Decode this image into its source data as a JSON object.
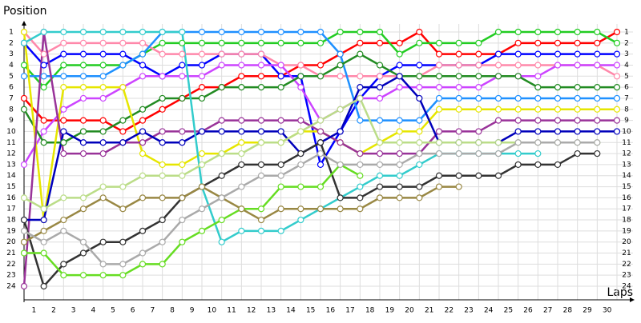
{
  "chart_data": {
    "type": "line",
    "y_label": "Position",
    "x_label": "Laps",
    "x": [
      0,
      1,
      2,
      3,
      4,
      5,
      6,
      7,
      8,
      9,
      10,
      11,
      12,
      13,
      14,
      15,
      16,
      17,
      18,
      19,
      20,
      21,
      22,
      23,
      24,
      25,
      26,
      27,
      28,
      29,
      30
    ],
    "xlim": [
      0,
      30
    ],
    "ylim": [
      1,
      24
    ],
    "y_inverted": true,
    "grid": true,
    "xticks": [
      1,
      2,
      3,
      4,
      5,
      6,
      7,
      8,
      9,
      10,
      11,
      12,
      13,
      14,
      15,
      16,
      17,
      18,
      19,
      20,
      21,
      22,
      23,
      24,
      25,
      26,
      27,
      28,
      29,
      30
    ],
    "yticks": [
      1,
      2,
      3,
      4,
      5,
      6,
      7,
      8,
      9,
      10,
      11,
      12,
      13,
      14,
      15,
      16,
      17,
      18,
      19,
      20,
      21,
      22,
      23,
      24
    ],
    "series": [
      {
        "color": "#ff0000",
        "values": [
          7,
          9,
          9,
          9,
          9,
          10,
          9,
          8,
          7,
          6,
          6,
          5,
          5,
          5,
          4,
          4,
          3,
          2,
          2,
          2,
          1,
          3,
          3,
          3,
          3,
          2,
          2,
          2,
          2,
          2,
          1
        ]
      },
      {
        "color": "#22cc22",
        "values": [
          4,
          6,
          4,
          4,
          4,
          4,
          3,
          2,
          2,
          2,
          2,
          2,
          2,
          2,
          2,
          2,
          1,
          1,
          1,
          3,
          2,
          2,
          2,
          2,
          1,
          1,
          1,
          1,
          1,
          1,
          2
        ]
      },
      {
        "color": "#0000ff",
        "values": [
          2,
          4,
          3,
          3,
          3,
          3,
          4,
          5,
          4,
          4,
          3,
          3,
          3,
          5,
          5,
          13,
          10,
          7,
          5,
          4,
          4,
          4,
          4,
          4,
          3,
          3,
          3,
          3,
          3,
          3,
          3
        ]
      },
      {
        "color": "#ff88aa",
        "values": [
          1,
          3,
          2,
          2,
          2,
          2,
          2,
          3,
          3,
          3,
          3,
          3,
          3,
          4,
          4,
          5,
          5,
          5,
          5,
          5,
          5,
          4,
          4,
          4,
          4,
          4,
          4,
          4,
          4,
          4,
          5
        ]
      },
      {
        "color": "#cc44ff",
        "values": [
          13,
          10,
          8,
          7,
          7,
          6,
          5,
          5,
          5,
          5,
          4,
          4,
          4,
          4,
          6,
          9,
          8,
          7,
          7,
          6,
          6,
          6,
          6,
          6,
          5,
          5,
          5,
          4,
          4,
          4,
          4
        ]
      },
      {
        "color": "#1e90ff",
        "values": [
          5,
          5,
          5,
          5,
          5,
          4,
          3,
          1,
          1,
          1,
          1,
          1,
          1,
          1,
          1,
          1,
          3,
          9,
          9,
          9,
          9,
          7,
          7,
          7,
          7,
          7,
          7,
          7,
          7,
          7,
          7
        ]
      },
      {
        "color": "#228b22",
        "values": [
          8,
          11,
          11,
          10,
          10,
          9,
          8,
          7,
          7,
          7,
          6,
          6,
          6,
          6,
          5,
          5,
          4,
          3,
          4,
          5,
          5,
          5,
          5,
          5,
          5,
          5,
          6,
          6,
          6,
          6,
          6
        ]
      },
      {
        "color": "#e6e600",
        "values": [
          1,
          18,
          6,
          6,
          6,
          6,
          12,
          13,
          13,
          12,
          12,
          11,
          11,
          11,
          10,
          10,
          11,
          12,
          11,
          10,
          10,
          8,
          8,
          8,
          8,
          8,
          8,
          8,
          8,
          8,
          8
        ]
      },
      {
        "color": "#993399",
        "values": [
          24,
          1,
          12,
          12,
          12,
          11,
          11,
          10,
          10,
          10,
          9,
          9,
          9,
          9,
          9,
          10,
          11,
          12,
          12,
          12,
          12,
          10,
          10,
          10,
          9,
          9,
          9,
          9,
          9,
          9,
          9
        ]
      },
      {
        "color": "#0000bb",
        "values": [
          18,
          18,
          10,
          11,
          11,
          11,
          10,
          11,
          11,
          10,
          10,
          10,
          10,
          10,
          12,
          11,
          10,
          6,
          6,
          5,
          7,
          11,
          11,
          11,
          11,
          10,
          10,
          10,
          10,
          10,
          10
        ]
      },
      {
        "color": "#33cccc",
        "values": [
          2,
          1,
          1,
          1,
          1,
          1,
          1,
          1,
          1,
          15,
          20,
          19,
          19,
          19,
          18,
          17,
          16,
          15,
          14,
          14,
          13,
          12,
          12,
          12,
          12,
          12,
          12,
          null,
          null,
          null,
          null
        ]
      },
      {
        "color": "#333333",
        "values": [
          18,
          24,
          22,
          21,
          20,
          20,
          19,
          18,
          16,
          15,
          14,
          13,
          13,
          13,
          12,
          11,
          16,
          16,
          15,
          15,
          15,
          14,
          14,
          14,
          14,
          13,
          13,
          13,
          12,
          12,
          null
        ]
      },
      {
        "color": "#66dd22",
        "values": [
          21,
          21,
          23,
          23,
          23,
          23,
          22,
          22,
          20,
          19,
          18,
          17,
          17,
          15,
          15,
          15,
          13,
          14,
          null,
          null,
          null,
          null,
          null,
          null,
          null,
          null,
          null,
          null,
          null,
          null,
          null
        ]
      },
      {
        "color": "#998844",
        "values": [
          20,
          19,
          18,
          17,
          16,
          17,
          16,
          16,
          16,
          15,
          16,
          17,
          18,
          17,
          17,
          17,
          17,
          17,
          16,
          16,
          16,
          15,
          15,
          null,
          null,
          null,
          null,
          null,
          null,
          null,
          null
        ]
      },
      {
        "color": "#bbdd88",
        "values": [
          16,
          17,
          16,
          16,
          15,
          15,
          14,
          14,
          14,
          13,
          12,
          12,
          11,
          11,
          10,
          9,
          8,
          7,
          11,
          11,
          11,
          11,
          11,
          11,
          11,
          11,
          11,
          11,
          11,
          11,
          null
        ]
      },
      {
        "color": "#aaaaaa",
        "values": [
          19,
          20,
          19,
          20,
          22,
          22,
          21,
          20,
          18,
          17,
          16,
          15,
          14,
          14,
          13,
          12,
          13,
          13,
          13,
          13,
          12,
          12,
          12,
          12,
          12,
          11,
          11,
          11,
          11,
          11,
          null
        ]
      }
    ]
  }
}
